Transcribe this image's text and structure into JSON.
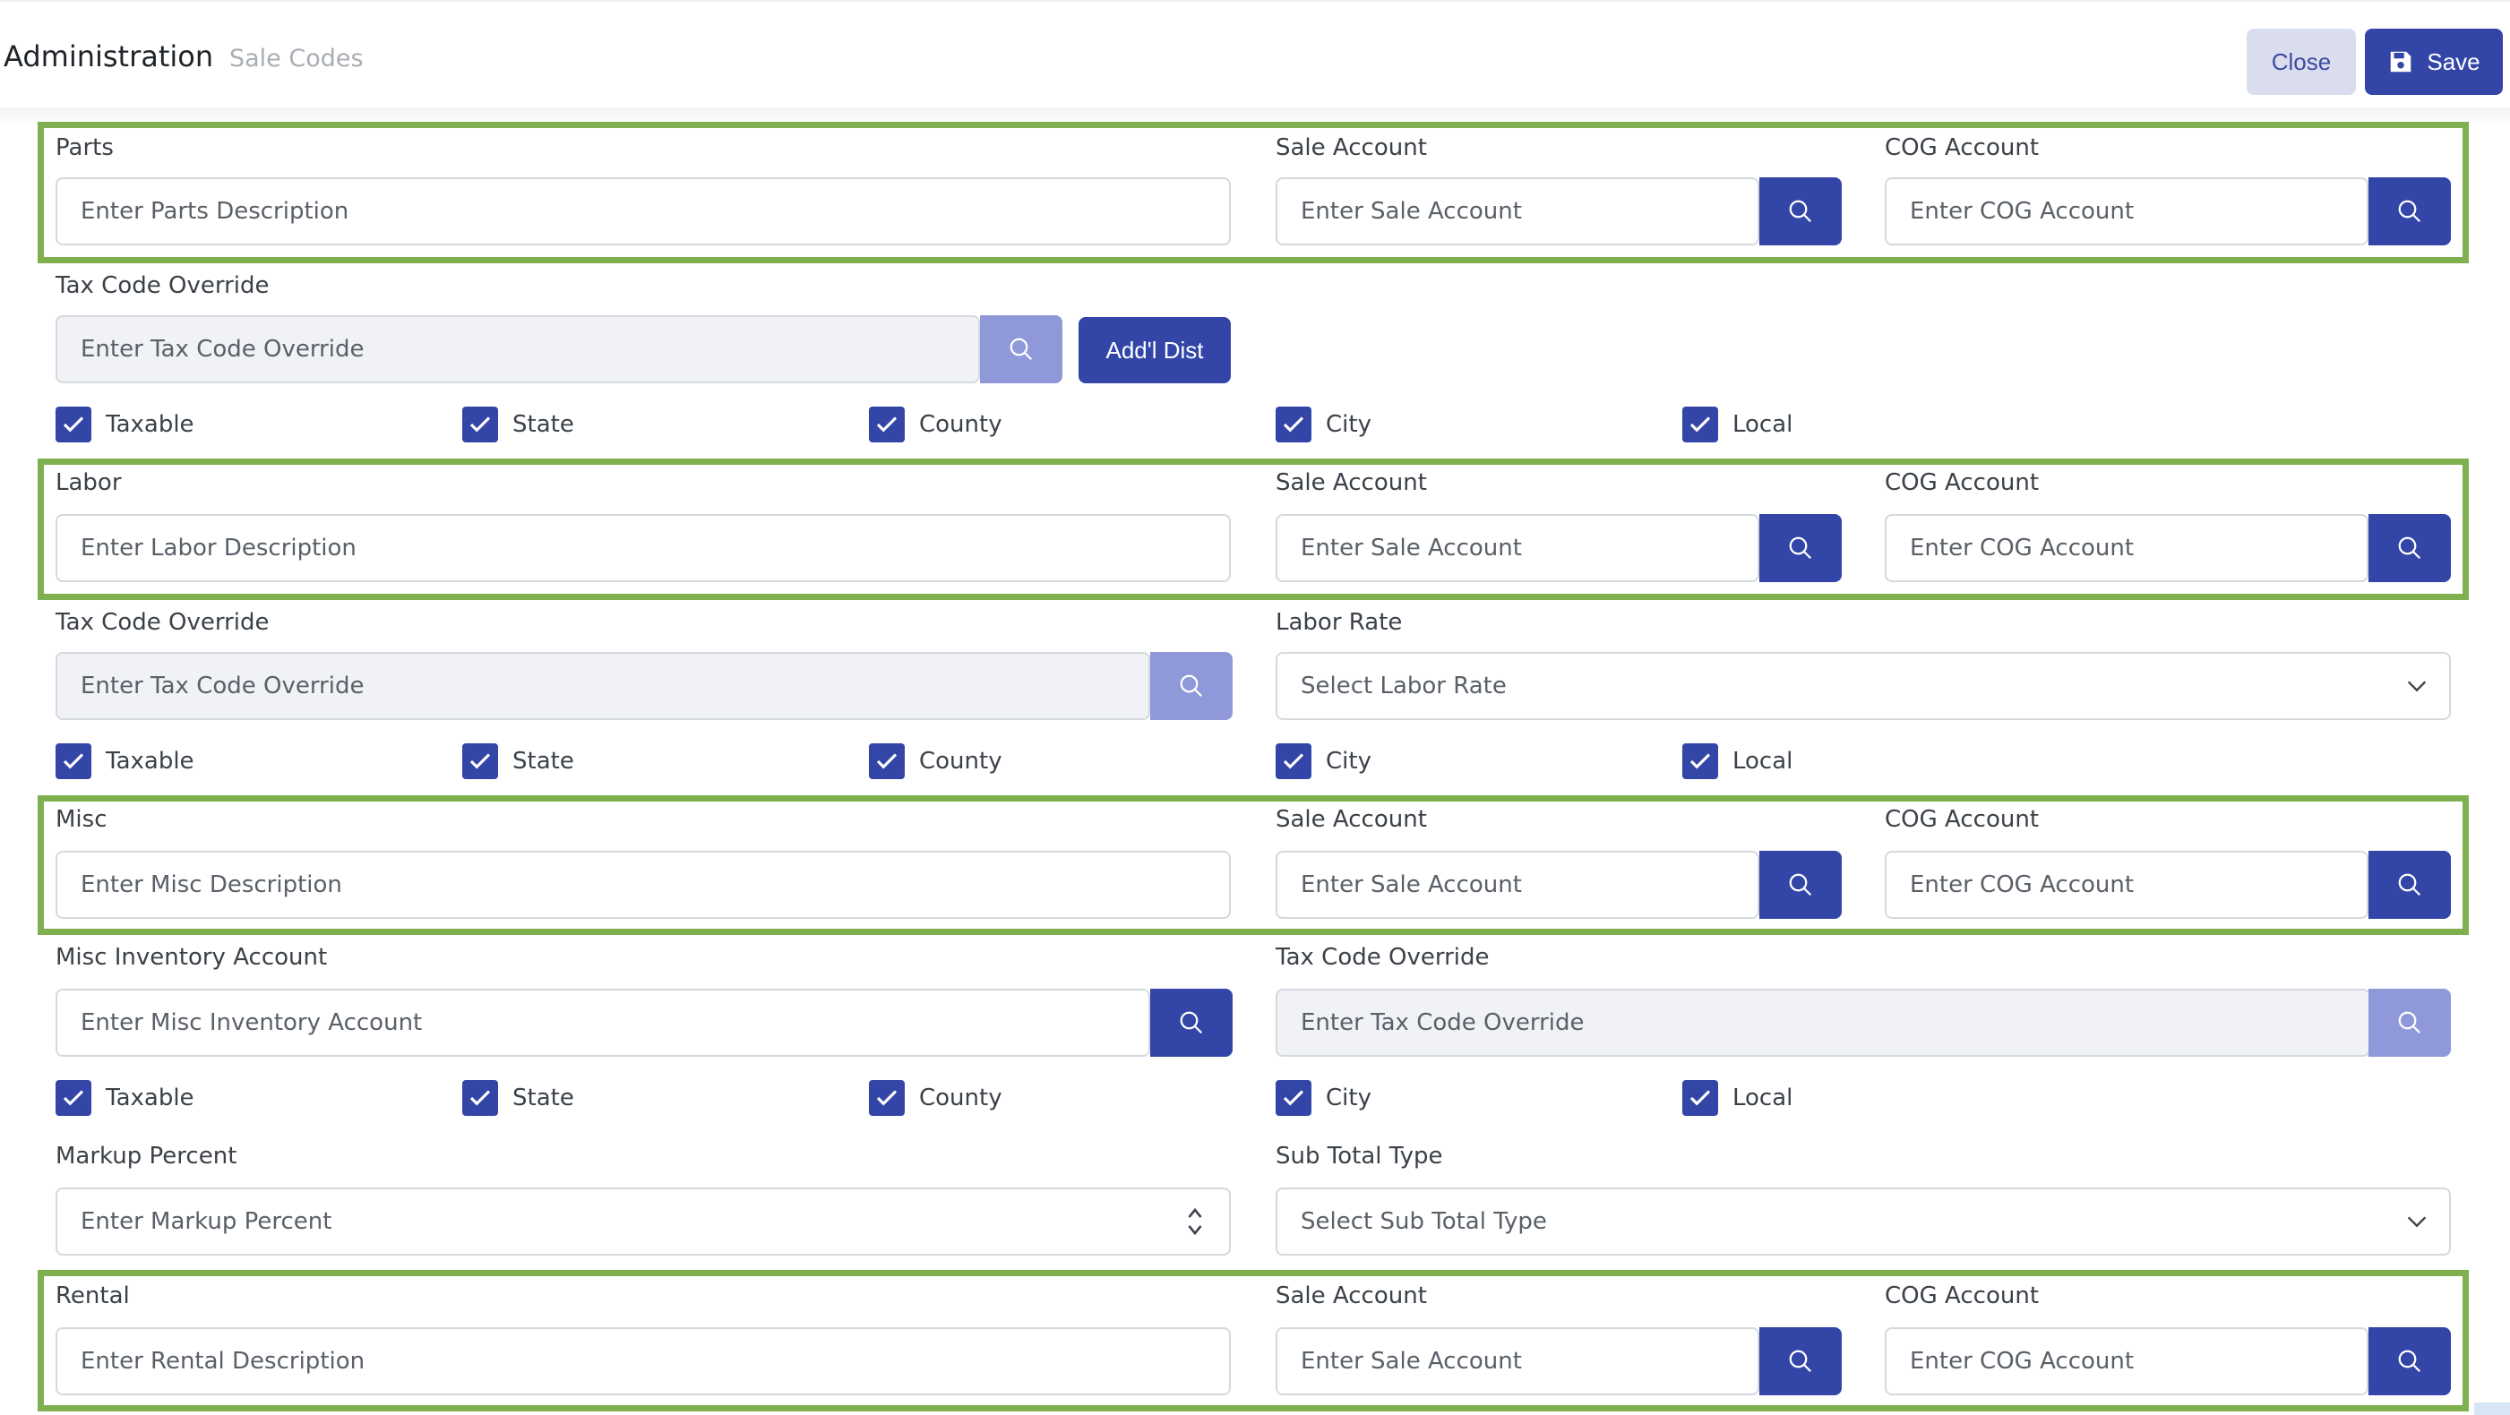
{
  "header": {
    "title": "Administration",
    "breadcrumb": "Sale Codes",
    "close_label": "Close",
    "save_label": "Save"
  },
  "common": {
    "sale_account_label": "Sale Account",
    "sale_account_placeholder": "Enter Sale Account",
    "cog_account_label": "COG Account",
    "cog_account_placeholder": "Enter COG Account",
    "tax_code_label": "Tax Code Override",
    "tax_code_placeholder": "Enter Tax Code Override",
    "checkboxes": [
      {
        "label": "Taxable",
        "checked": true
      },
      {
        "label": "State",
        "checked": true
      },
      {
        "label": "County",
        "checked": true
      },
      {
        "label": "City",
        "checked": true
      },
      {
        "label": "Local",
        "checked": true
      }
    ]
  },
  "parts": {
    "label": "Parts",
    "placeholder": "Enter Parts Description",
    "addl_dist_label": "Add'l Dist"
  },
  "labor": {
    "label": "Labor",
    "placeholder": "Enter Labor Description",
    "labor_rate_label": "Labor Rate",
    "labor_rate_placeholder": "Select Labor Rate"
  },
  "misc": {
    "label": "Misc",
    "placeholder": "Enter Misc Description",
    "inventory_label": "Misc Inventory Account",
    "inventory_placeholder": "Enter Misc Inventory Account",
    "markup_label": "Markup Percent",
    "markup_placeholder": "Enter Markup Percent",
    "subtotal_label": "Sub Total Type",
    "subtotal_placeholder": "Select Sub Total Type"
  },
  "rental": {
    "label": "Rental",
    "placeholder": "Enter Rental Description"
  },
  "colors": {
    "primary": "#3346a8",
    "primary_disabled": "#8f99d9",
    "highlight_border": "#7fb04f"
  }
}
